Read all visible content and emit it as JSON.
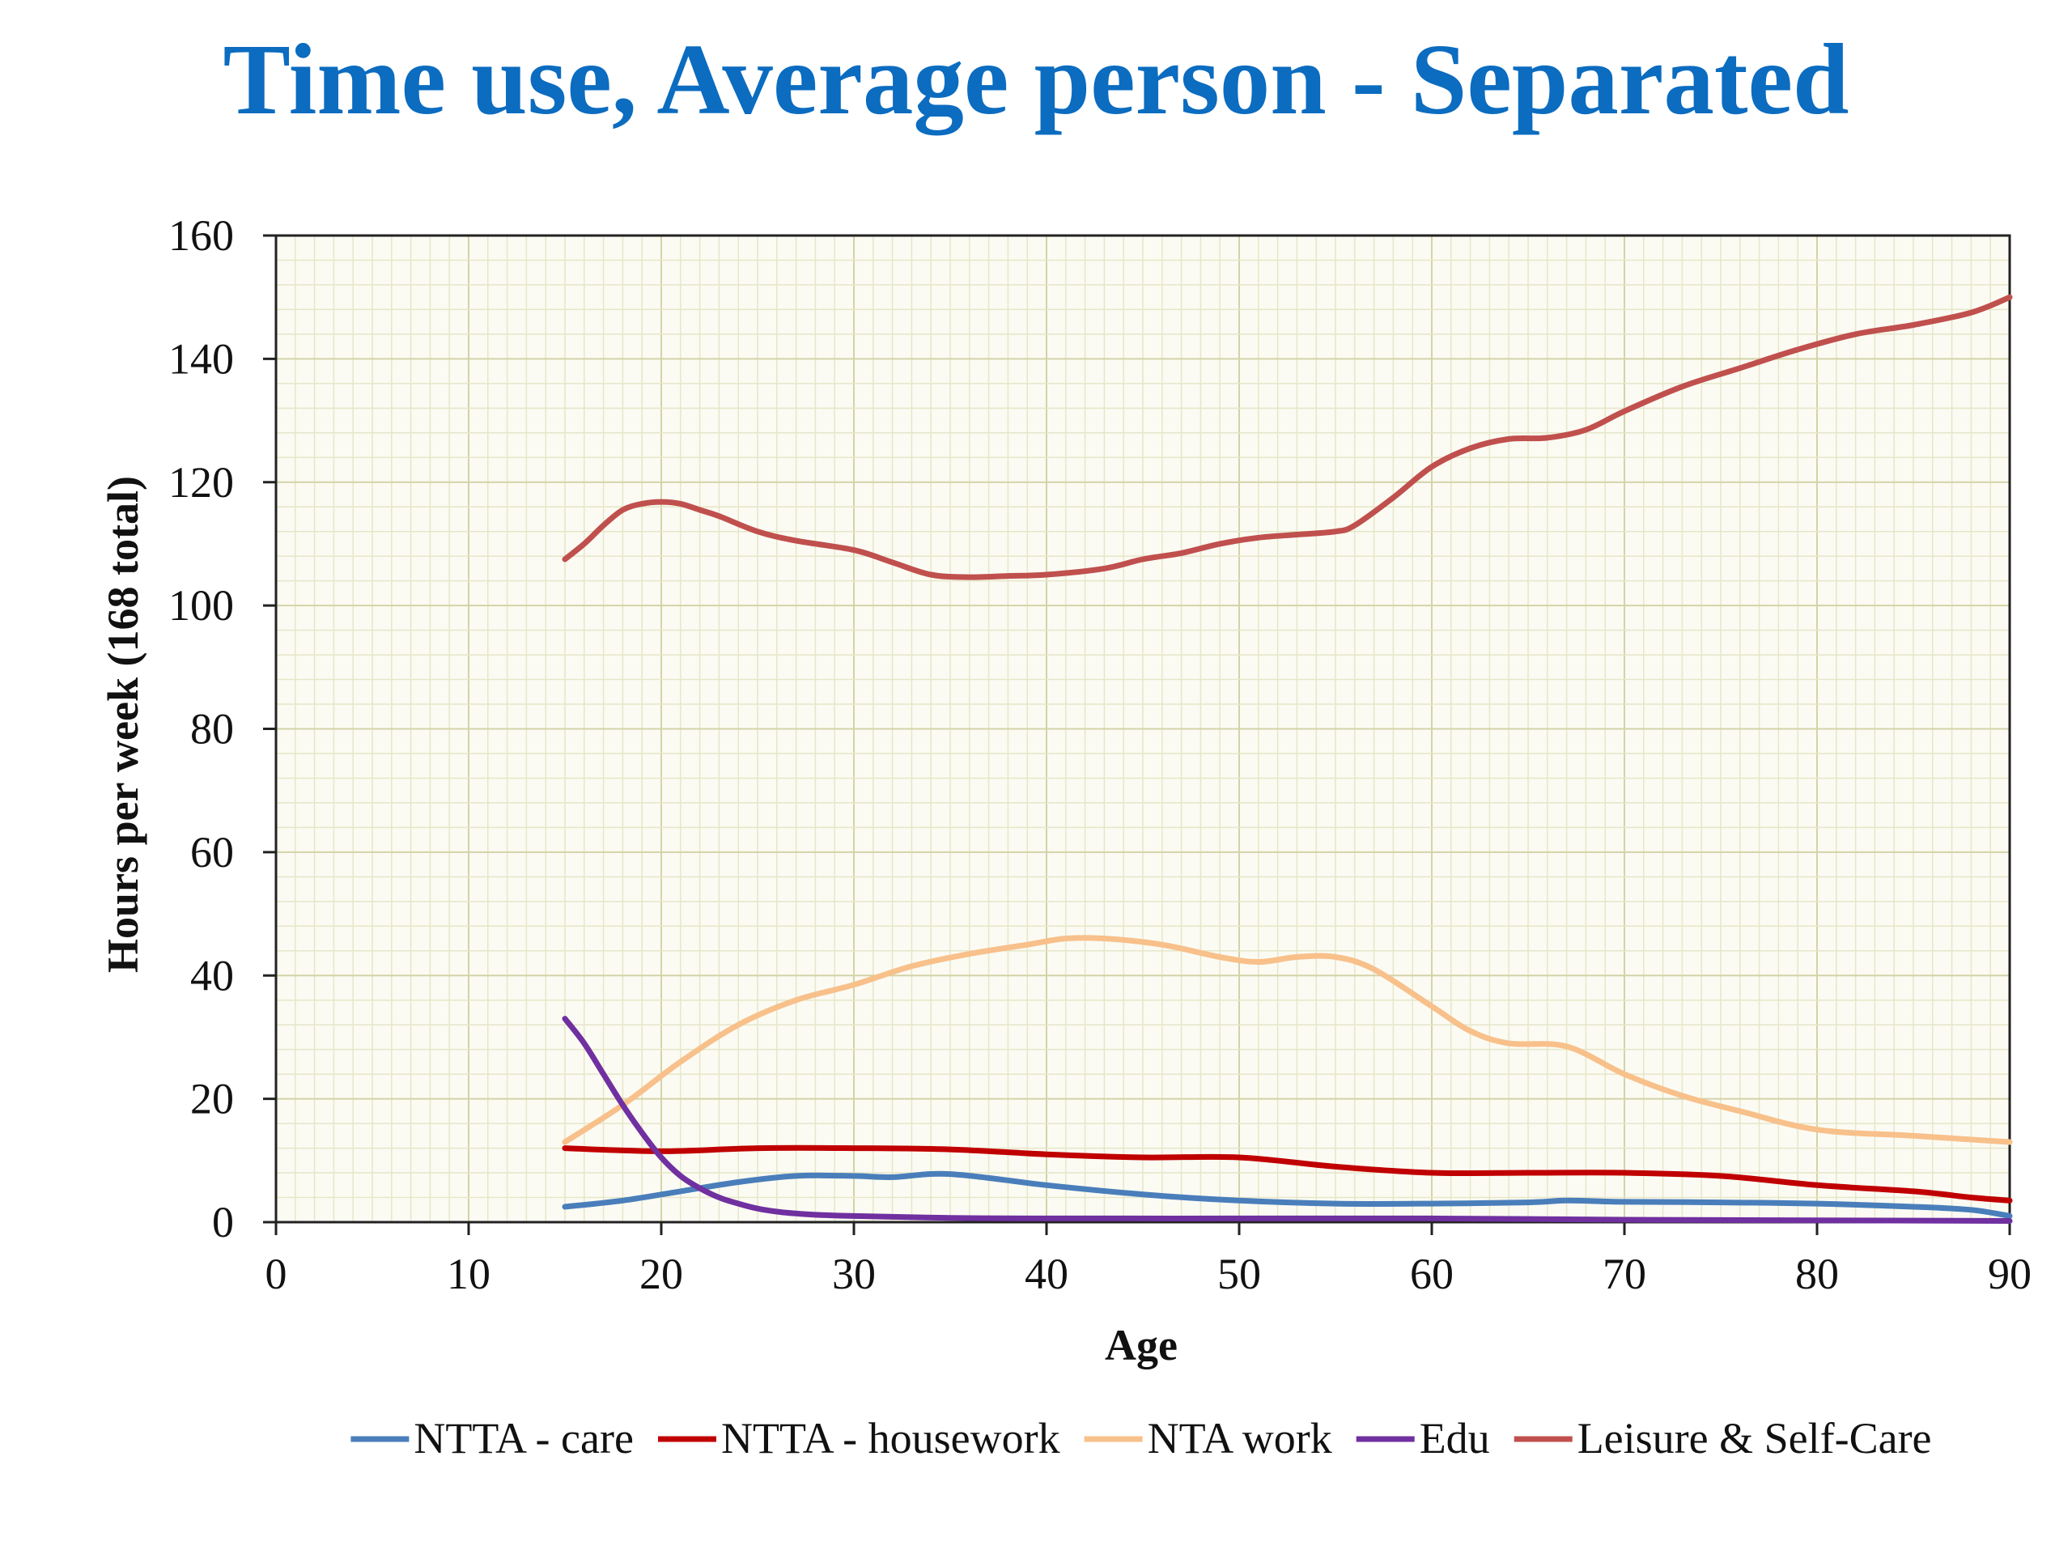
{
  "chart_data": {
    "type": "line",
    "title": "Time use, Average person - Separated",
    "xlabel": "Age",
    "ylabel": "Hours per week (168 total)",
    "xlim": [
      0,
      90
    ],
    "ylim": [
      0,
      160
    ],
    "xticks": [
      0,
      10,
      20,
      30,
      40,
      50,
      60,
      70,
      80,
      90
    ],
    "yticks": [
      0,
      20,
      40,
      60,
      80,
      100,
      120,
      140,
      160
    ],
    "grid": true,
    "legend_position": "bottom",
    "series": [
      {
        "name": "NTTA - care",
        "color": "#4a7ebb",
        "x": [
          15,
          18,
          21,
          24,
          27,
          30,
          32,
          35,
          40,
          45,
          50,
          55,
          60,
          65,
          67,
          70,
          75,
          80,
          85,
          88,
          90
        ],
        "y": [
          2.5,
          3.5,
          5,
          6.5,
          7.5,
          7.5,
          7.3,
          7.8,
          6,
          4.5,
          3.5,
          3,
          3,
          3.2,
          3.5,
          3.3,
          3.2,
          3,
          2.5,
          2,
          1
        ]
      },
      {
        "name": "NTTA - housework",
        "color": "#c00000",
        "x": [
          15,
          20,
          25,
          30,
          35,
          40,
          45,
          50,
          55,
          60,
          65,
          70,
          75,
          80,
          85,
          88,
          90
        ],
        "y": [
          12,
          11.5,
          12,
          12,
          11.8,
          11,
          10.5,
          10.5,
          9,
          8,
          8,
          8,
          7.5,
          6,
          5,
          4,
          3.5
        ]
      },
      {
        "name": "NTA work",
        "color": "#f8c08a",
        "x": [
          15,
          18,
          21,
          24,
          27,
          30,
          33,
          36,
          39,
          41,
          43,
          46,
          49,
          51,
          53,
          55,
          57,
          60,
          62,
          64,
          67,
          70,
          73,
          76,
          80,
          85,
          90
        ],
        "y": [
          13,
          19,
          26,
          32,
          36,
          38.5,
          41.5,
          43.5,
          45,
          46,
          46,
          45,
          43,
          42.2,
          43,
          43,
          41,
          35,
          31,
          29,
          28.5,
          24,
          20.5,
          18,
          15,
          14,
          13
        ]
      },
      {
        "name": "Edu",
        "color": "#7030a0",
        "x": [
          15,
          16,
          17,
          18,
          19,
          20,
          21,
          22,
          23,
          24,
          25,
          26,
          27,
          28,
          30,
          35,
          40,
          50,
          60,
          70,
          80,
          90
        ],
        "y": [
          33,
          29,
          24,
          19,
          14.5,
          10.5,
          7.5,
          5.5,
          4,
          3,
          2.2,
          1.7,
          1.4,
          1.2,
          1,
          0.7,
          0.6,
          0.6,
          0.6,
          0.4,
          0.3,
          0.2
        ]
      },
      {
        "name": "Leisure & Self-Care",
        "color": "#c0504d",
        "x": [
          15,
          16,
          17,
          18,
          19,
          20,
          21,
          22,
          23,
          25,
          27,
          30,
          32,
          34,
          36,
          38,
          40,
          43,
          45,
          47,
          49,
          51,
          53,
          55,
          56,
          58,
          60,
          62,
          64,
          66,
          68,
          70,
          73,
          76,
          79,
          82,
          85,
          88,
          90
        ],
        "y": [
          107.5,
          110,
          113,
          115.5,
          116.5,
          116.8,
          116.5,
          115.5,
          114.5,
          112,
          110.5,
          109,
          107,
          105,
          104.6,
          104.8,
          105,
          106,
          107.5,
          108.5,
          110,
          111,
          111.5,
          112,
          113,
          117.5,
          122.5,
          125.5,
          127,
          127.2,
          128.5,
          131.5,
          135.5,
          138.5,
          141.5,
          144,
          145.5,
          147.5,
          150
        ]
      }
    ]
  }
}
